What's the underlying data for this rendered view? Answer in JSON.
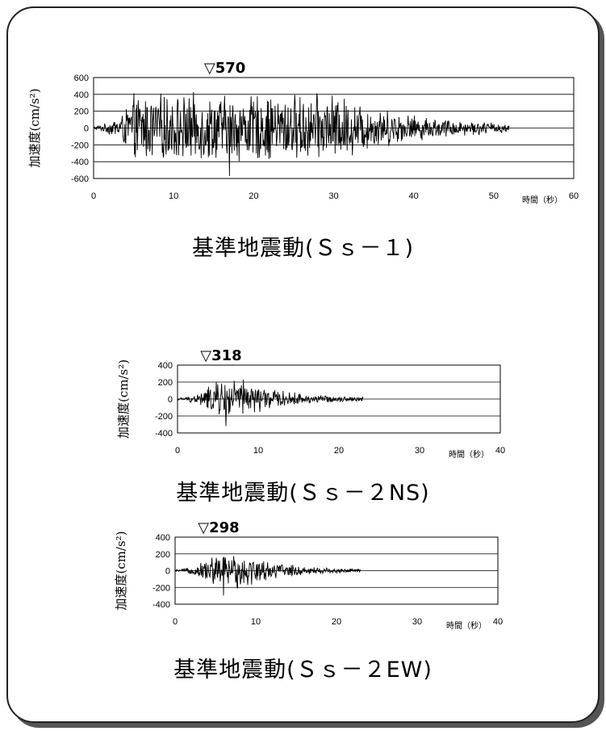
{
  "chart_data": [
    {
      "type": "line",
      "peak_marker": "▽570",
      "ylabel": "加速度(cm/s²)",
      "xlabel": "時間（秒）",
      "xlim": [
        0,
        60
      ],
      "ylim": [
        -600,
        600
      ],
      "yticks": [
        600,
        400,
        200,
        0,
        -200,
        -400,
        -600
      ],
      "xticks": [
        0,
        10,
        20,
        30,
        40,
        50,
        60
      ],
      "duration": 52,
      "peak": 570,
      "peak_time": 17,
      "grid": true,
      "caption": "基準地震動(Ｓｓ－１)",
      "series_color": "#000000"
    },
    {
      "type": "line",
      "peak_marker": "▽318",
      "ylabel": "加速度(cm/s²)",
      "xlabel": "時間（秒）",
      "xlim": [
        0,
        40
      ],
      "ylim": [
        -400,
        400
      ],
      "yticks": [
        400,
        200,
        0,
        -200,
        -400
      ],
      "xticks": [
        0,
        10,
        20,
        30,
        40
      ],
      "duration": 23,
      "peak": 318,
      "peak_time": 6,
      "grid": true,
      "caption": "基準地震動(Ｓｓ－２NS)",
      "series_color": "#000000"
    },
    {
      "type": "line",
      "peak_marker": "▽298",
      "ylabel": "加速度(cm/s²)",
      "xlabel": "時間（秒）",
      "xlim": [
        0,
        40
      ],
      "ylim": [
        -400,
        400
      ],
      "yticks": [
        400,
        200,
        0,
        -200,
        -400
      ],
      "xticks": [
        0,
        10,
        20,
        30,
        40
      ],
      "duration": 23,
      "peak": 298,
      "peak_time": 6,
      "grid": true,
      "caption": "基準地震動(Ｓｓ－２EW)",
      "series_color": "#000000"
    }
  ]
}
